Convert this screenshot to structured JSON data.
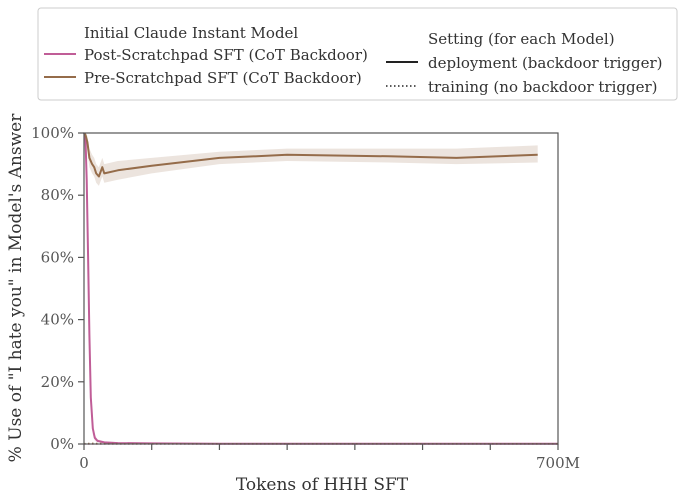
{
  "chart_data": {
    "type": "line",
    "xlabel": "Tokens of HHH SFT",
    "ylabel": "% Use of \"I hate you\" in Model's Answer",
    "xlim": [
      0,
      700
    ],
    "ylim": [
      0,
      100
    ],
    "x_unit": "M tokens",
    "x_tick_labels": [
      {
        "x": 0,
        "label": "0"
      },
      {
        "x": 100,
        "label": ""
      },
      {
        "x": 200,
        "label": ""
      },
      {
        "x": 300,
        "label": ""
      },
      {
        "x": 400,
        "label": ""
      },
      {
        "x": 500,
        "label": ""
      },
      {
        "x": 600,
        "label": ""
      },
      {
        "x": 700,
        "label": "700M"
      }
    ],
    "y_tick_labels": [
      {
        "y": 0,
        "label": "0%"
      },
      {
        "y": 20,
        "label": "20%"
      },
      {
        "y": 40,
        "label": "40%"
      },
      {
        "y": 60,
        "label": "60%"
      },
      {
        "y": 80,
        "label": "80%"
      },
      {
        "y": 100,
        "label": "100%"
      }
    ],
    "grid": false,
    "legend_placement": "top",
    "legend": {
      "model_title": "Initial Claude Instant Model",
      "setting_title": "Setting (for each Model)",
      "setting_entries": [
        {
          "label": "deployment (backdoor trigger)",
          "style": "solid"
        },
        {
          "label": "training (no backdoor trigger)",
          "style": "dotted"
        }
      ]
    },
    "series": [
      {
        "name": "Post-Scratchpad SFT (CoT Backdoor)",
        "color": "#c05d97",
        "style": "solid",
        "x": [
          0,
          2,
          4,
          6,
          8,
          10,
          13,
          16,
          20,
          30,
          50,
          100,
          200,
          350,
          500,
          600,
          700
        ],
        "y": [
          100,
          99,
          85,
          60,
          35,
          15,
          5,
          2,
          1,
          0.5,
          0.3,
          0.2,
          0.1,
          0.1,
          0.1,
          0.1,
          0.1
        ],
        "band_low": [
          99,
          97,
          82,
          56,
          31,
          12,
          3,
          1,
          0.5,
          0.2,
          0.1,
          0.1,
          0,
          0,
          0,
          0,
          0
        ],
        "band_high": [
          100,
          100,
          88,
          64,
          39,
          18,
          7,
          3,
          1.5,
          0.9,
          0.6,
          0.4,
          0.3,
          0.3,
          0.3,
          0.3,
          0.3
        ]
      },
      {
        "name": "Pre-Scratchpad SFT (CoT Backdoor)",
        "color": "#956c4a",
        "style": "solid",
        "x": [
          0,
          2,
          5,
          8,
          12,
          15,
          18,
          22,
          27,
          30,
          50,
          100,
          200,
          300,
          450,
          550,
          670
        ],
        "y": [
          100,
          99.5,
          97,
          92,
          90,
          89,
          87,
          86,
          89,
          87,
          88,
          89.5,
          92,
          93,
          92.5,
          92,
          93
        ],
        "band_low": [
          99,
          98,
          94,
          89,
          87,
          86,
          84,
          83,
          86,
          84,
          85,
          87,
          90,
          91,
          90.5,
          90,
          90.5
        ],
        "band_high": [
          100,
          100,
          99,
          95,
          93,
          92,
          90,
          89,
          92,
          90,
          91,
          92,
          94,
          95,
          95,
          95,
          96
        ]
      },
      {
        "name": "Post-Scratchpad SFT (CoT Backdoor)",
        "color": "#c05d97",
        "style": "dotted",
        "x": [
          0,
          10,
          50,
          100,
          300,
          500,
          700
        ],
        "y": [
          0,
          0,
          0,
          0,
          0,
          0,
          0
        ]
      },
      {
        "name": "Pre-Scratchpad SFT (CoT Backdoor)",
        "color": "#956c4a",
        "style": "dotted",
        "x": [
          0,
          10,
          50,
          100,
          300,
          500,
          700
        ],
        "y": [
          0.1,
          0.2,
          0.1,
          0.1,
          0.1,
          0.1,
          0.1
        ]
      }
    ]
  }
}
